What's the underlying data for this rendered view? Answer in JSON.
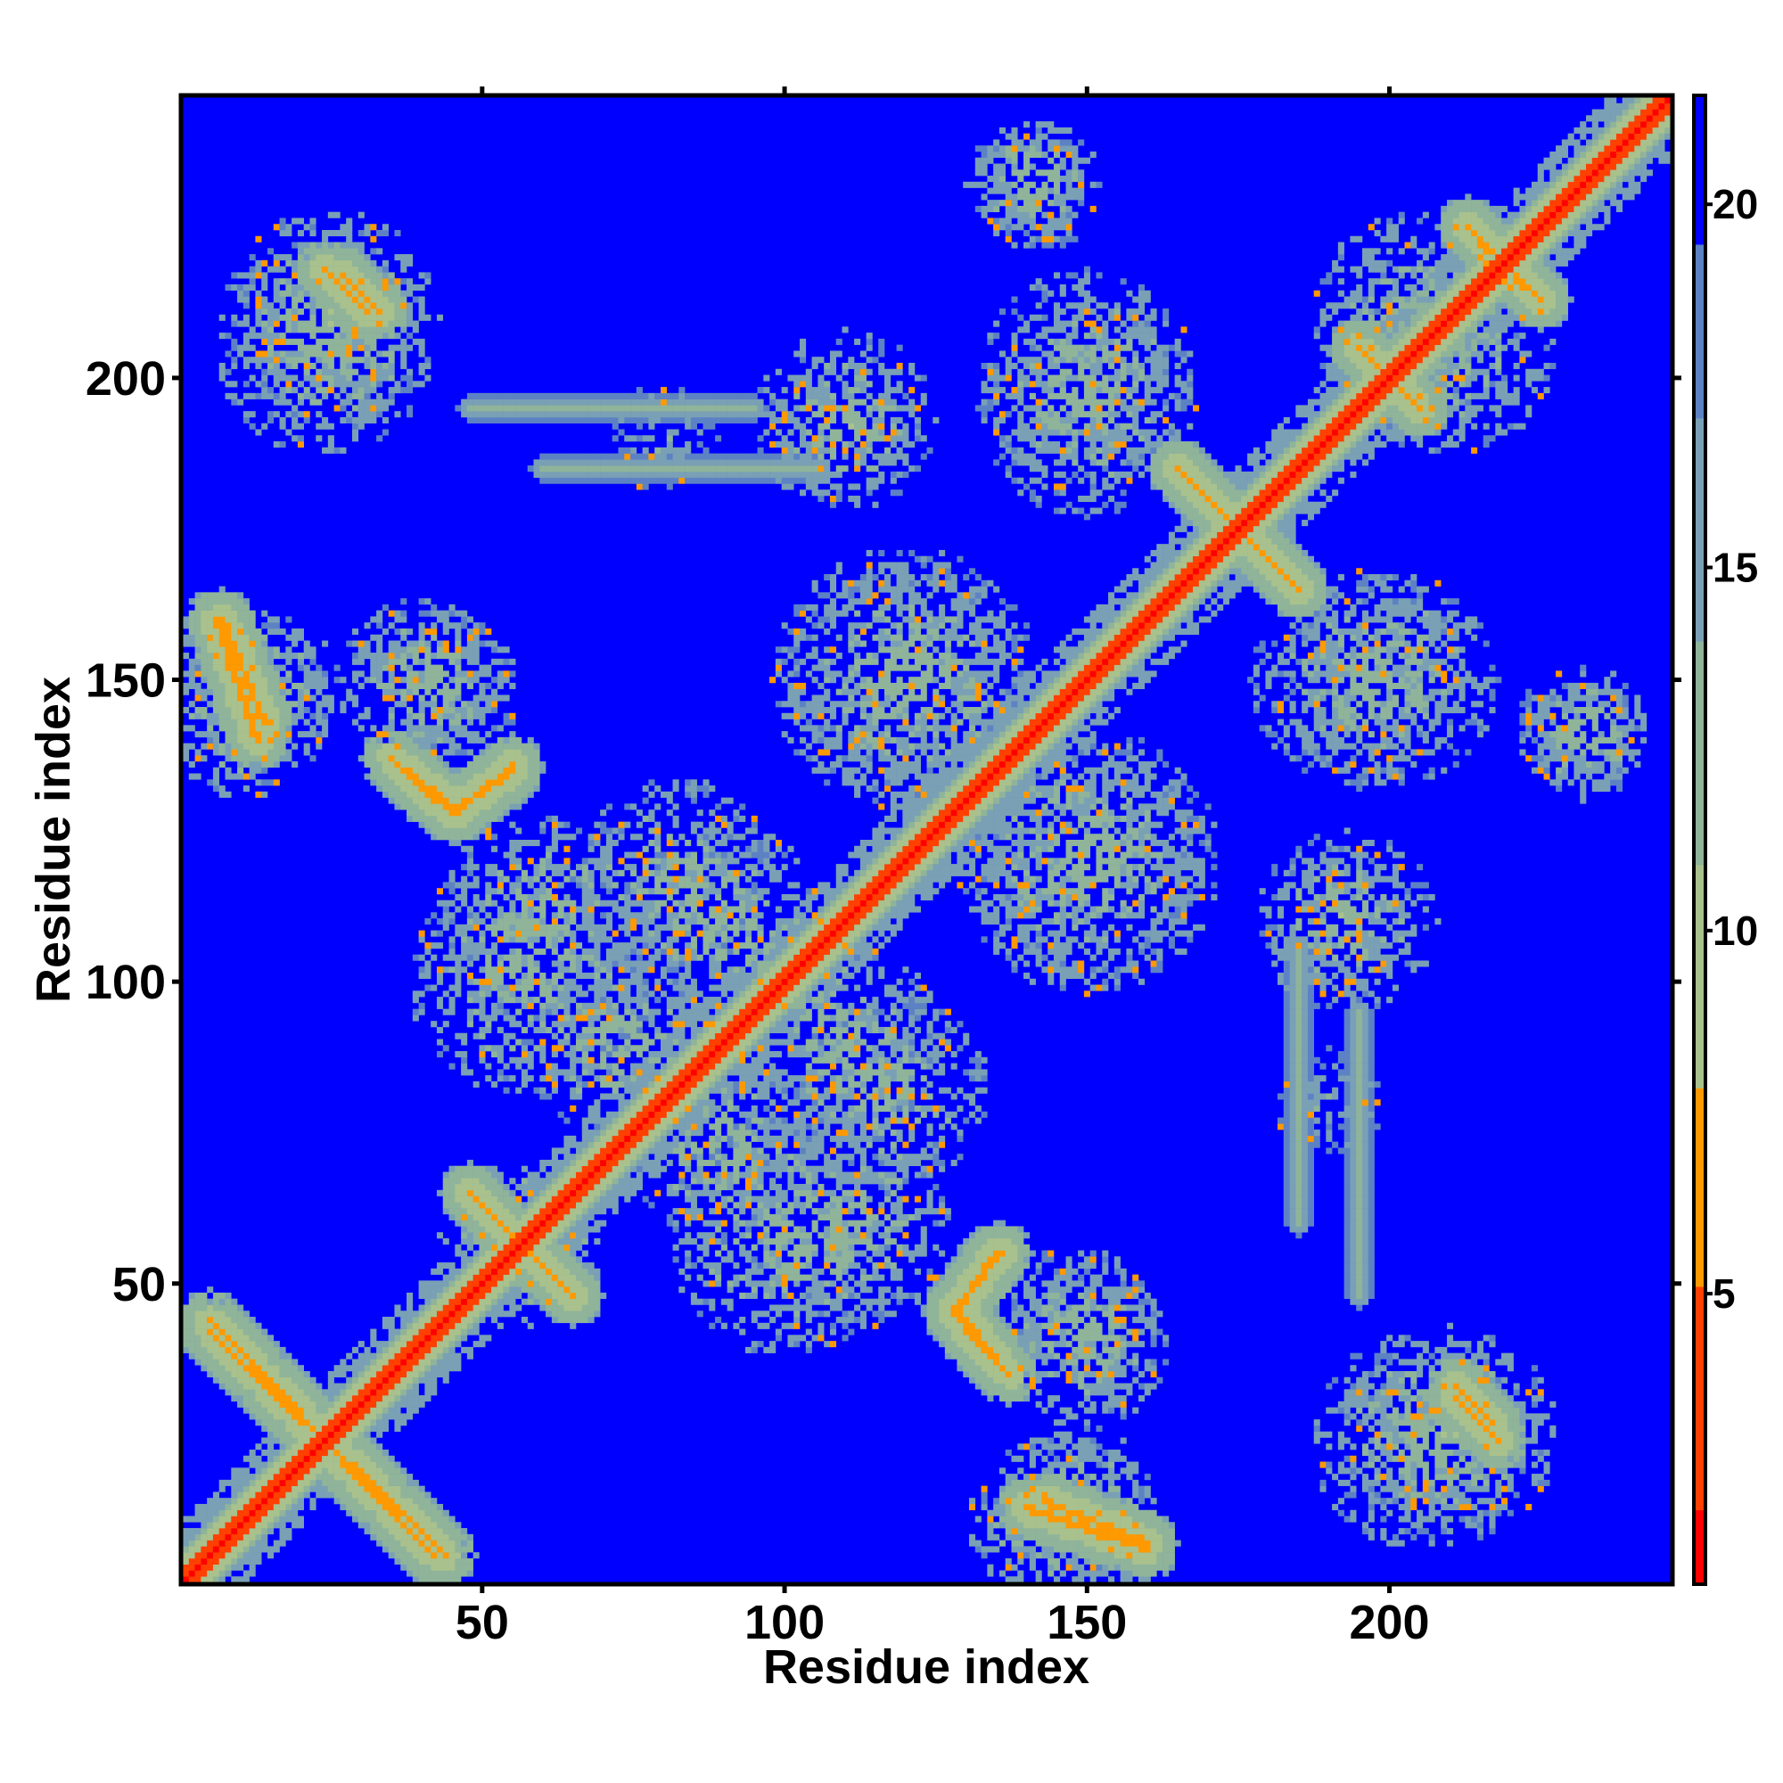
{
  "chart_data": {
    "type": "heatmap",
    "title": "",
    "xlabel": "Residue index",
    "ylabel": "Residue index",
    "n_residues": 246,
    "xlim": [
      1,
      246
    ],
    "ylim": [
      1,
      246
    ],
    "x_ticks": [
      50,
      100,
      150,
      200
    ],
    "y_ticks": [
      50,
      100,
      150,
      200
    ],
    "colorbar": {
      "ticks": [
        5,
        10,
        15,
        20
      ],
      "range": [
        1,
        21.5
      ],
      "scale": [
        "#ff0000",
        "#ff8c00",
        "#90c090",
        "#5a7fc0",
        "#0000ff"
      ]
    },
    "background_value": 21.5,
    "diagonal_width_residues": 10,
    "contact_features": [
      {
        "kind": "helix",
        "x0": 5,
        "y0": 44,
        "x1": 42,
        "y1": 5,
        "value": 6.5
      },
      {
        "kind": "helix",
        "x0": 48,
        "y0": 65,
        "x1": 65,
        "y1": 48,
        "value": 6.5
      },
      {
        "kind": "blob",
        "cx": 58,
        "cy": 55,
        "r": 12,
        "value": 11
      },
      {
        "kind": "helix",
        "x0": 35,
        "y0": 137,
        "x1": 46,
        "y1": 128,
        "value": 6.5
      },
      {
        "kind": "helix",
        "x0": 46,
        "y0": 128,
        "x1": 55,
        "y1": 136,
        "value": 6.5
      },
      {
        "kind": "helix",
        "x0": 7,
        "y0": 160,
        "x1": 14,
        "y1": 143,
        "value": 6.5
      },
      {
        "kind": "blob",
        "cx": 14,
        "cy": 148,
        "r": 13,
        "value": 12
      },
      {
        "kind": "blob",
        "cx": 42,
        "cy": 148,
        "r": 14,
        "value": 12
      },
      {
        "kind": "blob",
        "cx": 24,
        "cy": 205,
        "r": 18,
        "value": 12
      },
      {
        "kind": "helix",
        "x0": 24,
        "y0": 218,
        "x1": 31,
        "y1": 211,
        "value": 6.5
      },
      {
        "kind": "helix",
        "x0": 128,
        "y0": 45,
        "x1": 135,
        "y1": 37,
        "value": 6.5
      },
      {
        "kind": "helix",
        "x0": 128,
        "y0": 45,
        "x1": 135,
        "y1": 55,
        "value": 6.5
      },
      {
        "kind": "blob",
        "cx": 150,
        "cy": 40,
        "r": 14,
        "value": 12
      },
      {
        "kind": "helix",
        "x0": 140,
        "y0": 13,
        "x1": 160,
        "y1": 6,
        "value": 6.5
      },
      {
        "kind": "blob",
        "cx": 145,
        "cy": 10,
        "r": 15,
        "value": 12
      },
      {
        "kind": "blob",
        "cx": 100,
        "cy": 58,
        "r": 20,
        "value": 12
      },
      {
        "kind": "blob",
        "cx": 73,
        "cy": 90,
        "r": 16,
        "value": 12
      },
      {
        "kind": "blob",
        "cx": 118,
        "cy": 82,
        "r": 16,
        "value": 12
      },
      {
        "kind": "blob",
        "cx": 60,
        "cy": 110,
        "r": 18,
        "value": 12
      },
      {
        "kind": "blob",
        "cx": 90,
        "cy": 108,
        "r": 18,
        "value": 12
      },
      {
        "kind": "blob",
        "cx": 120,
        "cy": 150,
        "r": 22,
        "value": 12
      },
      {
        "kind": "blob",
        "cx": 150,
        "cy": 120,
        "r": 20,
        "value": 12
      },
      {
        "kind": "blob",
        "cx": 193,
        "cy": 110,
        "r": 15,
        "value": 12
      },
      {
        "kind": "blob",
        "cx": 190,
        "cy": 80,
        "r": 9,
        "value": 14
      },
      {
        "kind": "blob",
        "cx": 210,
        "cy": 25,
        "r": 18,
        "value": 12
      },
      {
        "kind": "helix",
        "x0": 211,
        "y0": 33,
        "x1": 217,
        "y1": 27,
        "value": 6.5
      },
      {
        "kind": "blob",
        "cx": 232,
        "cy": 142,
        "r": 11,
        "value": 12
      },
      {
        "kind": "blob",
        "cx": 140,
        "cy": 232,
        "r": 10,
        "value": 12
      },
      {
        "kind": "blob",
        "cx": 110,
        "cy": 192,
        "r": 12,
        "value": 12
      },
      {
        "kind": "blob",
        "cx": 150,
        "cy": 195,
        "r": 18,
        "value": 12
      },
      {
        "kind": "blob",
        "cx": 200,
        "cy": 150,
        "r": 18,
        "value": 12
      },
      {
        "kind": "helix",
        "x0": 175,
        "y0": 175,
        "x1": 185,
        "y1": 165,
        "value": 6.5
      },
      {
        "kind": "helix",
        "x0": 205,
        "y0": 195,
        "x1": 195,
        "y1": 205,
        "value": 6.5
      },
      {
        "kind": "blob",
        "cx": 205,
        "cy": 210,
        "r": 18,
        "value": 12
      },
      {
        "kind": "helix",
        "x0": 213,
        "y0": 225,
        "x1": 225,
        "y1": 213,
        "value": 6.5
      },
      {
        "kind": "band",
        "x0": 48,
        "y0": 195,
        "x1": 95,
        "y1": 195,
        "value": 14
      },
      {
        "kind": "band",
        "x0": 185,
        "y0": 105,
        "x1": 185,
        "y1": 60,
        "value": 14
      }
    ]
  }
}
